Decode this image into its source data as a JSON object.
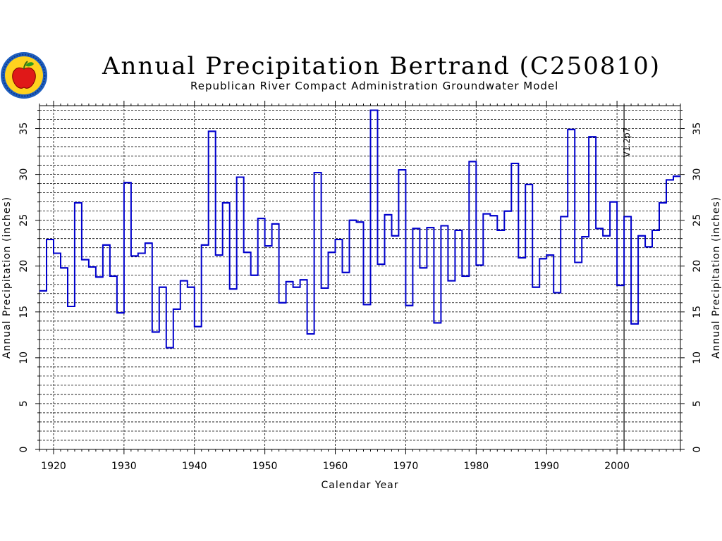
{
  "header": {
    "title": "Annual Precipitation Bertrand (C250810)",
    "subtitle": "Republican River Compact Administration Groundwater Model",
    "logo_icon": "apple-seal-icon"
  },
  "colors": {
    "series": "#0000cc",
    "axis": "#000000",
    "grid": "#000000"
  },
  "chart_data": {
    "type": "line",
    "step": true,
    "title": "Annual Precipitation Bertrand (C250810)",
    "subtitle": "Republican River Compact Administration Groundwater Model",
    "xlabel": "Calendar Year",
    "ylabel": "Annual Precipitation (inches)",
    "ylabel_right": "Annual Precipitation (inches)",
    "xlim": [
      1918,
      2009
    ],
    "ylim": [
      0,
      37.5
    ],
    "xticks": [
      1920,
      1930,
      1940,
      1950,
      1960,
      1970,
      1980,
      1990,
      2000
    ],
    "yticks": [
      0,
      5,
      10,
      15,
      20,
      25,
      30,
      35
    ],
    "grid": true,
    "grid_minor_y": 1,
    "annotation": {
      "x": 2001,
      "label": "V1.2p7"
    },
    "series": [
      {
        "x": [
          1918,
          1919,
          1920,
          1921,
          1922,
          1923,
          1924,
          1925,
          1926,
          1927,
          1928,
          1929,
          1930,
          1931,
          1932,
          1933,
          1934,
          1935,
          1936,
          1937,
          1938,
          1939,
          1940,
          1941,
          1942,
          1943,
          1944,
          1945,
          1946,
          1947,
          1948,
          1949,
          1950,
          1951,
          1952,
          1953,
          1954,
          1955,
          1956,
          1957,
          1958,
          1959,
          1960,
          1961,
          1962,
          1963,
          1964,
          1965,
          1966,
          1967,
          1968,
          1969,
          1970,
          1971,
          1972,
          1973,
          1974,
          1975,
          1976,
          1977,
          1978,
          1979,
          1980,
          1981,
          1982,
          1983,
          1984,
          1985,
          1986,
          1987,
          1988,
          1989,
          1990,
          1991,
          1992,
          1993,
          1994,
          1995,
          1996,
          1997,
          1998,
          1999,
          2000,
          2001,
          2002,
          2003,
          2004,
          2005,
          2006,
          2007,
          2008
        ],
        "values": [
          17.3,
          22.9,
          21.4,
          19.8,
          15.6,
          26.9,
          20.7,
          19.9,
          18.8,
          22.3,
          18.9,
          14.9,
          29.1,
          21.1,
          21.4,
          22.5,
          12.8,
          17.7,
          11.1,
          15.3,
          18.4,
          17.7,
          13.4,
          22.3,
          34.7,
          21.2,
          26.9,
          17.5,
          29.7,
          21.5,
          19.0,
          25.2,
          22.2,
          24.6,
          16.0,
          18.3,
          17.7,
          18.5,
          12.6,
          30.2,
          17.6,
          21.5,
          22.9,
          19.3,
          25.0,
          24.8,
          15.8,
          37.0,
          20.2,
          25.6,
          23.3,
          30.5,
          15.7,
          24.1,
          19.8,
          24.2,
          13.8,
          24.4,
          18.4,
          23.9,
          18.9,
          31.4,
          20.1,
          25.7,
          25.5,
          23.9,
          26.0,
          31.2,
          20.9,
          28.9,
          17.7,
          20.8,
          21.2,
          17.1,
          25.4,
          34.9,
          20.4,
          23.2,
          34.1,
          24.1,
          23.3,
          27.0,
          17.9,
          25.4,
          13.7,
          23.3,
          22.1,
          23.9,
          26.9,
          29.4,
          29.8
        ]
      }
    ]
  }
}
